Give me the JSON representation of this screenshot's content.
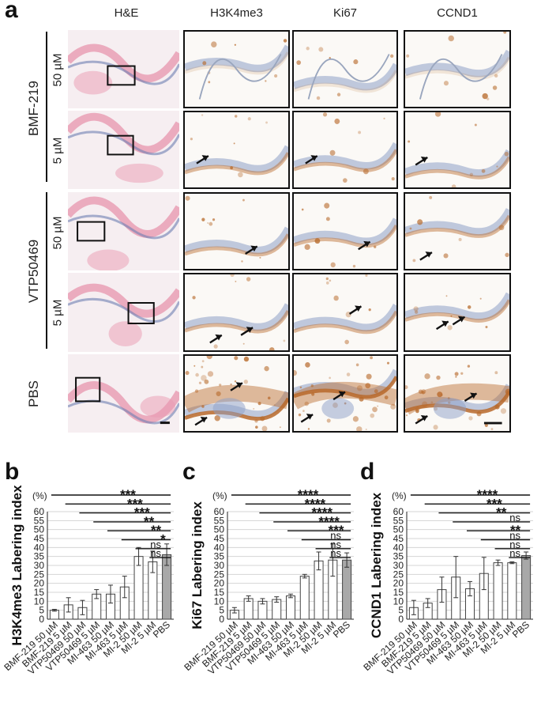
{
  "panel_letters": [
    "a",
    "b",
    "c",
    "d"
  ],
  "figure_a": {
    "columns": [
      "H&E",
      "H3K4me3",
      "Ki67",
      "CCND1"
    ],
    "groups": [
      "BMF-219",
      "VTP50469",
      "PBS"
    ],
    "doses": [
      "50 µM",
      "5 µM",
      "50 µM",
      "5 µM"
    ],
    "colors": {
      "he_bg": "#f6eef1",
      "he_tissue": "#e99ab2",
      "he_dark": "#6e7fb3",
      "stain_bg": "#fbf9f6",
      "brown": "#b7692a",
      "blue_tissue": "#8ea0c7"
    }
  },
  "chart_data": [
    {
      "type": "bar",
      "panel": "b",
      "ylabel": "H3K4me3 Labering index",
      "unit": "(%)",
      "ylim": [
        0,
        60
      ],
      "yticks": [
        0,
        5,
        10,
        15,
        20,
        25,
        30,
        35,
        40,
        45,
        50,
        55,
        60
      ],
      "categories": [
        "BMF-219 50 µM",
        "BMF-219 5 µM",
        "VTP50469 50 µM",
        "VTP50469 5 µM",
        "MI-463 50 µM",
        "MI-463 5 µM",
        "MI-2 50 µM",
        "MI-2 5 µM",
        "PBS"
      ],
      "values": [
        5,
        8,
        6.5,
        14,
        14,
        18,
        35,
        32,
        36
      ],
      "errors": [
        0.5,
        4,
        4,
        2.5,
        5,
        6,
        5,
        6,
        6
      ],
      "bar_colors": [
        "#ffffff",
        "#ffffff",
        "#ffffff",
        "#ffffff",
        "#ffffff",
        "#ffffff",
        "#ffffff",
        "#ffffff",
        "#a8a8a8"
      ],
      "significance": [
        {
          "from": 0,
          "label": "***"
        },
        {
          "from": 1,
          "label": "***"
        },
        {
          "from": 2,
          "label": "***"
        },
        {
          "from": 3,
          "label": "**"
        },
        {
          "from": 4,
          "label": "**"
        },
        {
          "from": 5,
          "label": "*"
        },
        {
          "from": 6,
          "label": "ns"
        },
        {
          "from": 7,
          "label": "ns"
        }
      ]
    },
    {
      "type": "bar",
      "panel": "c",
      "ylabel": "Ki67 Labering index",
      "unit": "(%)",
      "ylim": [
        0,
        60
      ],
      "yticks": [
        0,
        5,
        10,
        15,
        20,
        25,
        30,
        35,
        40,
        45,
        50,
        55,
        60
      ],
      "categories": [
        "BMF-219 50 µM",
        "BMF-219 5 µM",
        "VTP50469 50 µM",
        "VTP50469 5 µM",
        "MI-463 50 µM",
        "MI-463 5 µM",
        "MI-2 50 µM",
        "MI-2 5 µM",
        "PBS"
      ],
      "values": [
        5,
        11.5,
        10,
        11,
        13,
        24,
        32.5,
        33,
        33
      ],
      "errors": [
        1.5,
        1.5,
        1.5,
        1.5,
        1,
        1,
        5,
        9,
        4
      ],
      "bar_colors": [
        "#ffffff",
        "#ffffff",
        "#ffffff",
        "#ffffff",
        "#ffffff",
        "#ffffff",
        "#ffffff",
        "#ffffff",
        "#a8a8a8"
      ],
      "significance": [
        {
          "from": 0,
          "label": "****"
        },
        {
          "from": 1,
          "label": "****"
        },
        {
          "from": 2,
          "label": "****"
        },
        {
          "from": 3,
          "label": "****"
        },
        {
          "from": 4,
          "label": "***"
        },
        {
          "from": 5,
          "label": "ns"
        },
        {
          "from": 6,
          "label": "ns"
        },
        {
          "from": 7,
          "label": "ns"
        }
      ]
    },
    {
      "type": "bar",
      "panel": "d",
      "ylabel": "CCND1 Labering index",
      "unit": "(%)",
      "ylim": [
        0,
        60
      ],
      "yticks": [
        0,
        5,
        10,
        15,
        20,
        25,
        30,
        35,
        40,
        45,
        50,
        55,
        60
      ],
      "categories": [
        "BMF-219 50 µM",
        "BMF-219 5 µM",
        "VTP50469 50 µM",
        "VTP50469 5 µM",
        "MI-463 50 µM",
        "MI-463 5 µM",
        "MI-2 50 µM",
        "MI-2 5 µM",
        "PBS"
      ],
      "values": [
        6.5,
        9,
        16.5,
        23.5,
        17,
        25.5,
        31.5,
        31.5,
        35.5
      ],
      "errors": [
        4,
        2.5,
        7,
        11.5,
        4,
        9,
        1.5,
        0.5,
        2
      ],
      "bar_colors": [
        "#ffffff",
        "#ffffff",
        "#ffffff",
        "#ffffff",
        "#ffffff",
        "#ffffff",
        "#ffffff",
        "#ffffff",
        "#a8a8a8"
      ],
      "significance": [
        {
          "from": 0,
          "label": "****"
        },
        {
          "from": 1,
          "label": "***"
        },
        {
          "from": 2,
          "label": "**"
        },
        {
          "from": 3,
          "label": "ns"
        },
        {
          "from": 4,
          "label": "**"
        },
        {
          "from": 5,
          "label": "ns"
        },
        {
          "from": 6,
          "label": "ns"
        },
        {
          "from": 7,
          "label": "ns"
        }
      ]
    }
  ]
}
